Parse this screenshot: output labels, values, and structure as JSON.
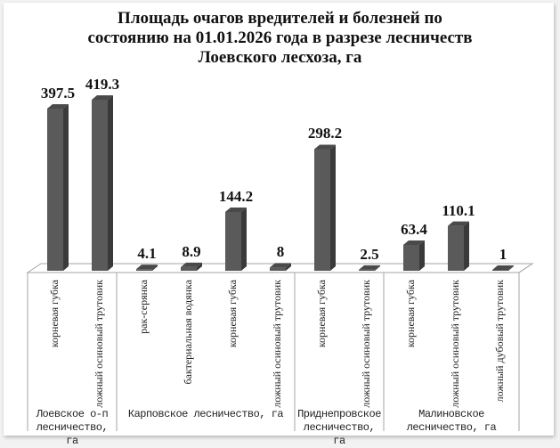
{
  "title": {
    "lines": [
      "Площадь очагов вредителей и болезней по",
      "состоянию на 01.01.2026 года в разрезе лесничеств",
      "Лоевского лесхоза, га"
    ]
  },
  "colors": {
    "bar_front": "#5a5a5a",
    "bar_side": "#3a3a3a",
    "bar_top": "#4a4a4a",
    "axis_line": "#a6a6a6",
    "background": "#ffffff"
  },
  "chart_data": {
    "type": "bar",
    "style": "3d-column",
    "title": "Площадь очагов вредителей и болезней по состоянию на 01.01.2026 года в разрезе лесничеств Лоевского лесхоза, га",
    "xlabel": "",
    "ylabel": "",
    "grid": false,
    "legend": null,
    "groups": [
      {
        "name": "Лоевское о-п лесничество, га",
        "categories": [
          "корневая губка",
          "ложный осиновый трутовик"
        ],
        "values": [
          397.5,
          419.3
        ]
      },
      {
        "name": "Карповское лесничество, га",
        "categories": [
          "рак-серянка",
          "бактериальная водянка",
          "корневая губка",
          "ложный осиновый трутовик"
        ],
        "values": [
          4.1,
          8.9,
          144.2,
          8
        ]
      },
      {
        "name": "Приднепровское лесничество, га",
        "categories": [
          "корневая губка",
          "ложный осиновый трутовик"
        ],
        "values": [
          298.2,
          2.5
        ]
      },
      {
        "name": "Малиновское лесничество, га",
        "categories": [
          "корневая губка",
          "ложный осиновый трутовик",
          "ложный дубовый трутовик"
        ],
        "values": [
          63.4,
          110.1,
          1
        ]
      }
    ],
    "categories": [
      "корневая губка",
      "ложный осиновый трутовик",
      "рак-серянка",
      "бактериальная водянка",
      "корневая губка",
      "ложный осиновый трутовик",
      "корневая губка",
      "ложный осиновый трутовик",
      "корневая губка",
      "ложный осиновый трутовик",
      "ложный дубовый трутовик"
    ],
    "values": [
      397.5,
      419.3,
      4.1,
      8.9,
      144.2,
      8,
      298.2,
      2.5,
      63.4,
      110.1,
      1
    ],
    "value_labels": [
      "397.5",
      "419.3",
      "4.1",
      "8.9",
      "144.2",
      "8",
      "298.2",
      "2.5",
      "63.4",
      "110.1",
      "1"
    ],
    "group_labels": [
      [
        "Лоевское о-п",
        "лесничество, га"
      ],
      [
        "Карповское лесничество, га"
      ],
      [
        "Приднепровское",
        "лесничество, га"
      ],
      [
        "Малиновское",
        "лесничество, га"
      ]
    ],
    "ylim": [
      0,
      420
    ]
  }
}
